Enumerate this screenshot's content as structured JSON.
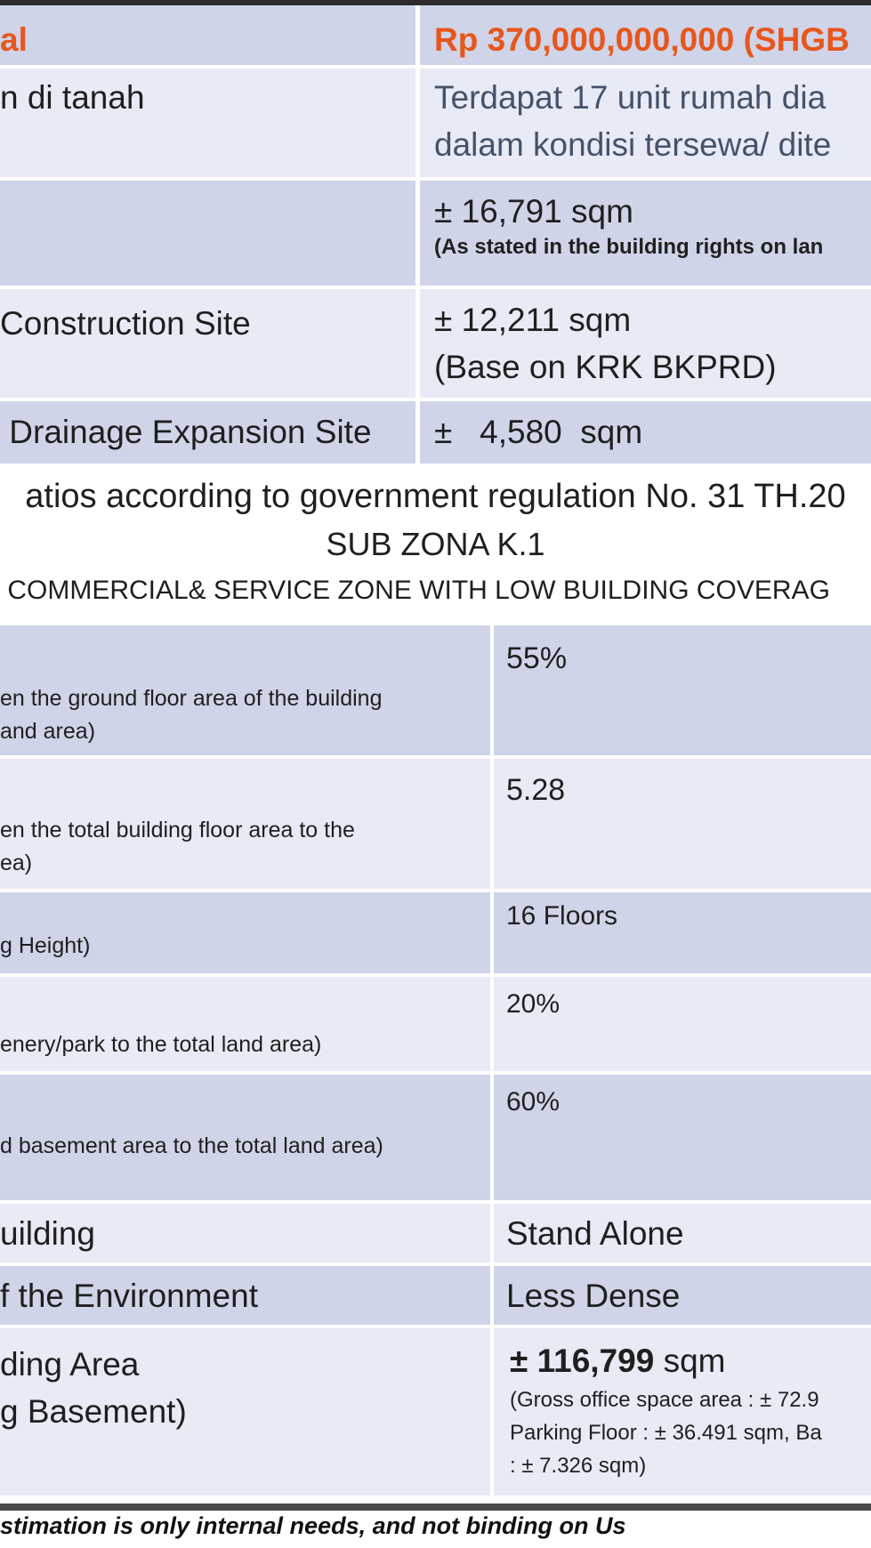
{
  "table1": {
    "row1": {
      "left": "al",
      "right": "Rp 370,000,000,000 (SHGB"
    },
    "row2": {
      "left": "n di tanah",
      "right_line1": "Terdapat 17 unit rumah dia",
      "right_line2": "dalam kondisi tersewa/ dite"
    },
    "row3": {
      "right_line1": "± 16,791 sqm",
      "right_line2": "(As stated in the building rights on lan"
    },
    "row4": {
      "left": "Construction Site",
      "right_line1": "± 12,211 sqm",
      "right_line2": "(Base on KRK BKPRD)"
    },
    "row5": {
      "left": " Drainage Expansion Site",
      "right": "±   4,580  sqm"
    }
  },
  "heading": {
    "line1": "atios according to government regulation No. 31 TH.20",
    "line2": "SUB ZONA K.1",
    "line3": " COMMERCIAL& SERVICE ZONE WITH LOW BUILDING COVERAG"
  },
  "table2": {
    "kdb": {
      "desc_line1": "en the ground floor area of the building",
      "desc_line2": "and area)",
      "value": "55%"
    },
    "klb": {
      "desc_line1": "en the total building floor area to the",
      "desc_line2": "ea)",
      "value": "5.28"
    },
    "height": {
      "desc": "g Height)",
      "value": "16 Floors"
    },
    "green": {
      "desc": "enery/park to the total land area)",
      "value": "20%"
    },
    "basement": {
      "desc": "d basement area to the total land area)",
      "value": "60%"
    },
    "building": {
      "label": "uilding",
      "value": "Stand Alone"
    },
    "environment": {
      "label": "f the Environment",
      "value": "Less Dense"
    },
    "area": {
      "label_line1": "ding Area",
      "label_line2": "g Basement)",
      "value_bold": "± 116,799",
      "value_unit": " sqm",
      "detail_line1": "(Gross office space area : ± 72.9",
      "detail_line2": "Parking Floor : ± 36.491 sqm, Ba",
      "detail_line3": ": ± 7.326 sqm)"
    }
  },
  "footer": {
    "text": "stimation is only internal needs, and not binding on Us"
  }
}
